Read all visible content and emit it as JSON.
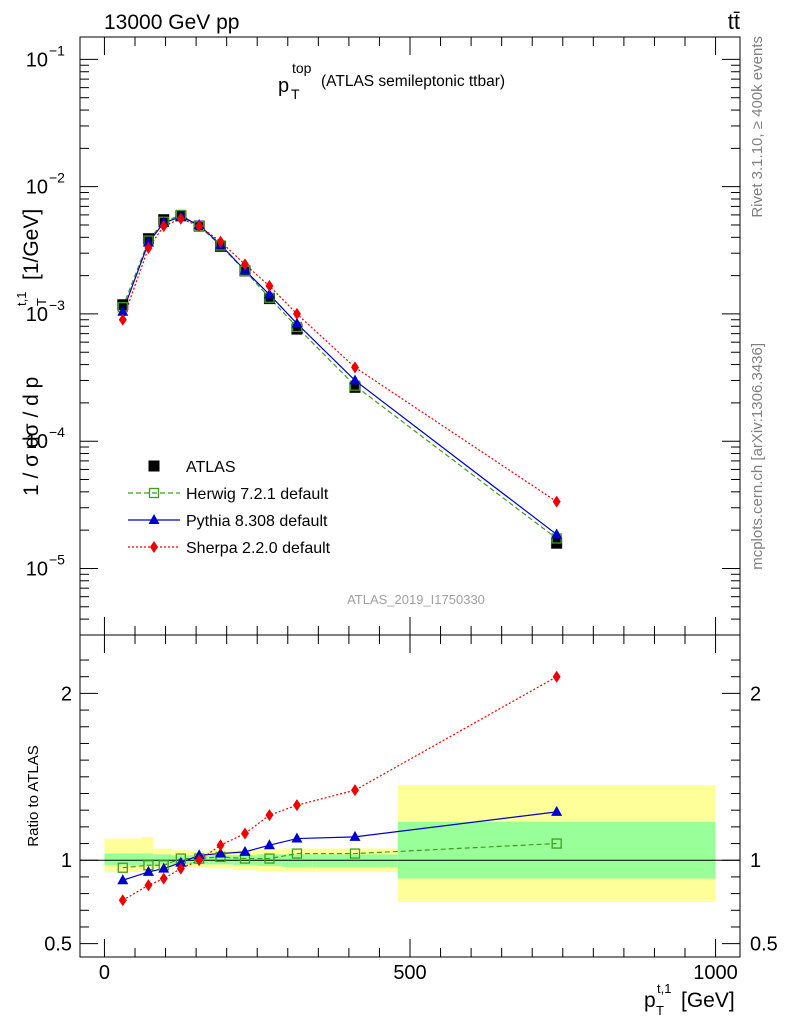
{
  "header": {
    "energy_label": "13000 GeV pp",
    "process_label": "tt̄"
  },
  "side_labels": {
    "rivet": "Rivet 3.1.10, ≥ 400k events",
    "mcplots": "mcplots.cern.ch [arXiv:1306.3436]"
  },
  "chart_data": [
    {
      "type": "line",
      "panel": "main",
      "title_main": "p",
      "title_sup": "top",
      "title_sub": "T",
      "title_rest": "(ATLAS semileptonic ttbar)",
      "ylabel": "1 / σ dσ / d p",
      "ylabel_sup": "t,1",
      "ylabel_sub": "T",
      "ylabel_unit": "[1/GeV]",
      "yscale": "log",
      "ylim": [
        3e-06,
        0.15
      ],
      "xlim": [
        -40,
        1040
      ],
      "y_ticks": [
        {
          "value": 0.1,
          "base": "10",
          "exp": "−1"
        },
        {
          "value": 0.01,
          "base": "10",
          "exp": "−2"
        },
        {
          "value": 0.001,
          "base": "10",
          "exp": "−3"
        },
        {
          "value": 0.0001,
          "base": "10",
          "exp": "−4"
        },
        {
          "value": 1e-05,
          "base": "10",
          "exp": "−5"
        }
      ],
      "analysis_label": "ATLAS_2019_I1750330",
      "legend_position": "bottom-left",
      "x": [
        30,
        72,
        97,
        125,
        155,
        190,
        230,
        270,
        315,
        410,
        740
      ],
      "series": [
        {
          "name": "ATLAS",
          "color": "#000000",
          "marker": "square",
          "line": "none",
          "values": [
            0.00118,
            0.0039,
            0.0055,
            0.0059,
            0.0049,
            0.0034,
            0.00218,
            0.00132,
            0.00076,
            0.000265,
            1.58e-05
          ]
        },
        {
          "name": "Herwig 7.2.1 default",
          "color": "#3d9e1d",
          "marker": "open-square",
          "line": "dashed",
          "values": [
            0.00113,
            0.00377,
            0.0053,
            0.006,
            0.0049,
            0.00345,
            0.00218,
            0.00134,
            0.00079,
            0.000273,
            1.72e-05
          ]
        },
        {
          "name": "Pythia 8.308 default",
          "color": "#0000cc",
          "marker": "triangle",
          "line": "solid",
          "values": [
            0.00104,
            0.00363,
            0.0052,
            0.0058,
            0.005,
            0.0035,
            0.0022,
            0.00142,
            0.00084,
            0.0003,
            1.85e-05
          ]
        },
        {
          "name": "Sherpa 2.2.0 default",
          "color": "#ee0000",
          "marker": "diamond",
          "line": "dotted",
          "values": [
            0.0009,
            0.0033,
            0.0049,
            0.0056,
            0.0049,
            0.0037,
            0.00245,
            0.00166,
            0.001,
            0.00038,
            3.35e-05
          ]
        }
      ]
    },
    {
      "type": "line",
      "panel": "ratio",
      "ylabel": "Ratio to ATLAS",
      "xlabel": "p",
      "xlabel_sup": "t,1",
      "xlabel_sub": "T",
      "xlabel_unit": "[GeV]",
      "ylim": [
        0.42,
        2.35
      ],
      "xlim": [
        -40,
        1040
      ],
      "x_ticks": [
        {
          "value": 0,
          "label": "0"
        },
        {
          "value": 500,
          "label": "500"
        },
        {
          "value": 1000,
          "label": "1000"
        }
      ],
      "y_ticks": [
        {
          "value": 0.5,
          "label": "0.5"
        },
        {
          "value": 1,
          "label": "1"
        },
        {
          "value": 2,
          "label": "2"
        }
      ],
      "bins": [
        0,
        60,
        80,
        110,
        140,
        170,
        210,
        250,
        290,
        340,
        480,
        1000
      ],
      "band_inner": [
        [
          0.97,
          1.04
        ],
        [
          0.97,
          1.04
        ],
        [
          0.975,
          1.035
        ],
        [
          0.975,
          1.03
        ],
        [
          0.975,
          1.03
        ],
        [
          0.975,
          1.03
        ],
        [
          0.97,
          1.03
        ],
        [
          0.965,
          1.035
        ],
        [
          0.96,
          1.035
        ],
        [
          0.96,
          1.035
        ],
        [
          0.89,
          1.23
        ]
      ],
      "band_outer": [
        [
          0.93,
          1.13
        ],
        [
          0.93,
          1.14
        ],
        [
          0.95,
          1.07
        ],
        [
          0.96,
          1.06
        ],
        [
          0.955,
          1.05
        ],
        [
          0.95,
          1.06
        ],
        [
          0.94,
          1.06
        ],
        [
          0.935,
          1.065
        ],
        [
          0.93,
          1.07
        ],
        [
          0.93,
          1.07
        ],
        [
          0.75,
          1.45
        ]
      ],
      "x": [
        30,
        72,
        97,
        125,
        155,
        190,
        230,
        270,
        315,
        410,
        740
      ],
      "series": [
        {
          "name": "Herwig 7.2.1 default",
          "color": "#3d9e1d",
          "marker": "open-square",
          "line": "dashed",
          "values": [
            0.955,
            0.97,
            0.97,
            1.01,
            1.01,
            1.02,
            1.01,
            1.01,
            1.04,
            1.04,
            1.1
          ]
        },
        {
          "name": "Pythia 8.308 default",
          "color": "#0000cc",
          "marker": "triangle",
          "line": "solid",
          "values": [
            0.88,
            0.93,
            0.95,
            0.985,
            1.03,
            1.04,
            1.05,
            1.09,
            1.13,
            1.14,
            1.29
          ]
        },
        {
          "name": "Sherpa 2.2.0 default",
          "color": "#ee0000",
          "marker": "diamond",
          "line": "dotted",
          "values": [
            0.76,
            0.85,
            0.89,
            0.95,
            1.0,
            1.09,
            1.16,
            1.27,
            1.33,
            1.42,
            2.1
          ]
        }
      ]
    }
  ]
}
